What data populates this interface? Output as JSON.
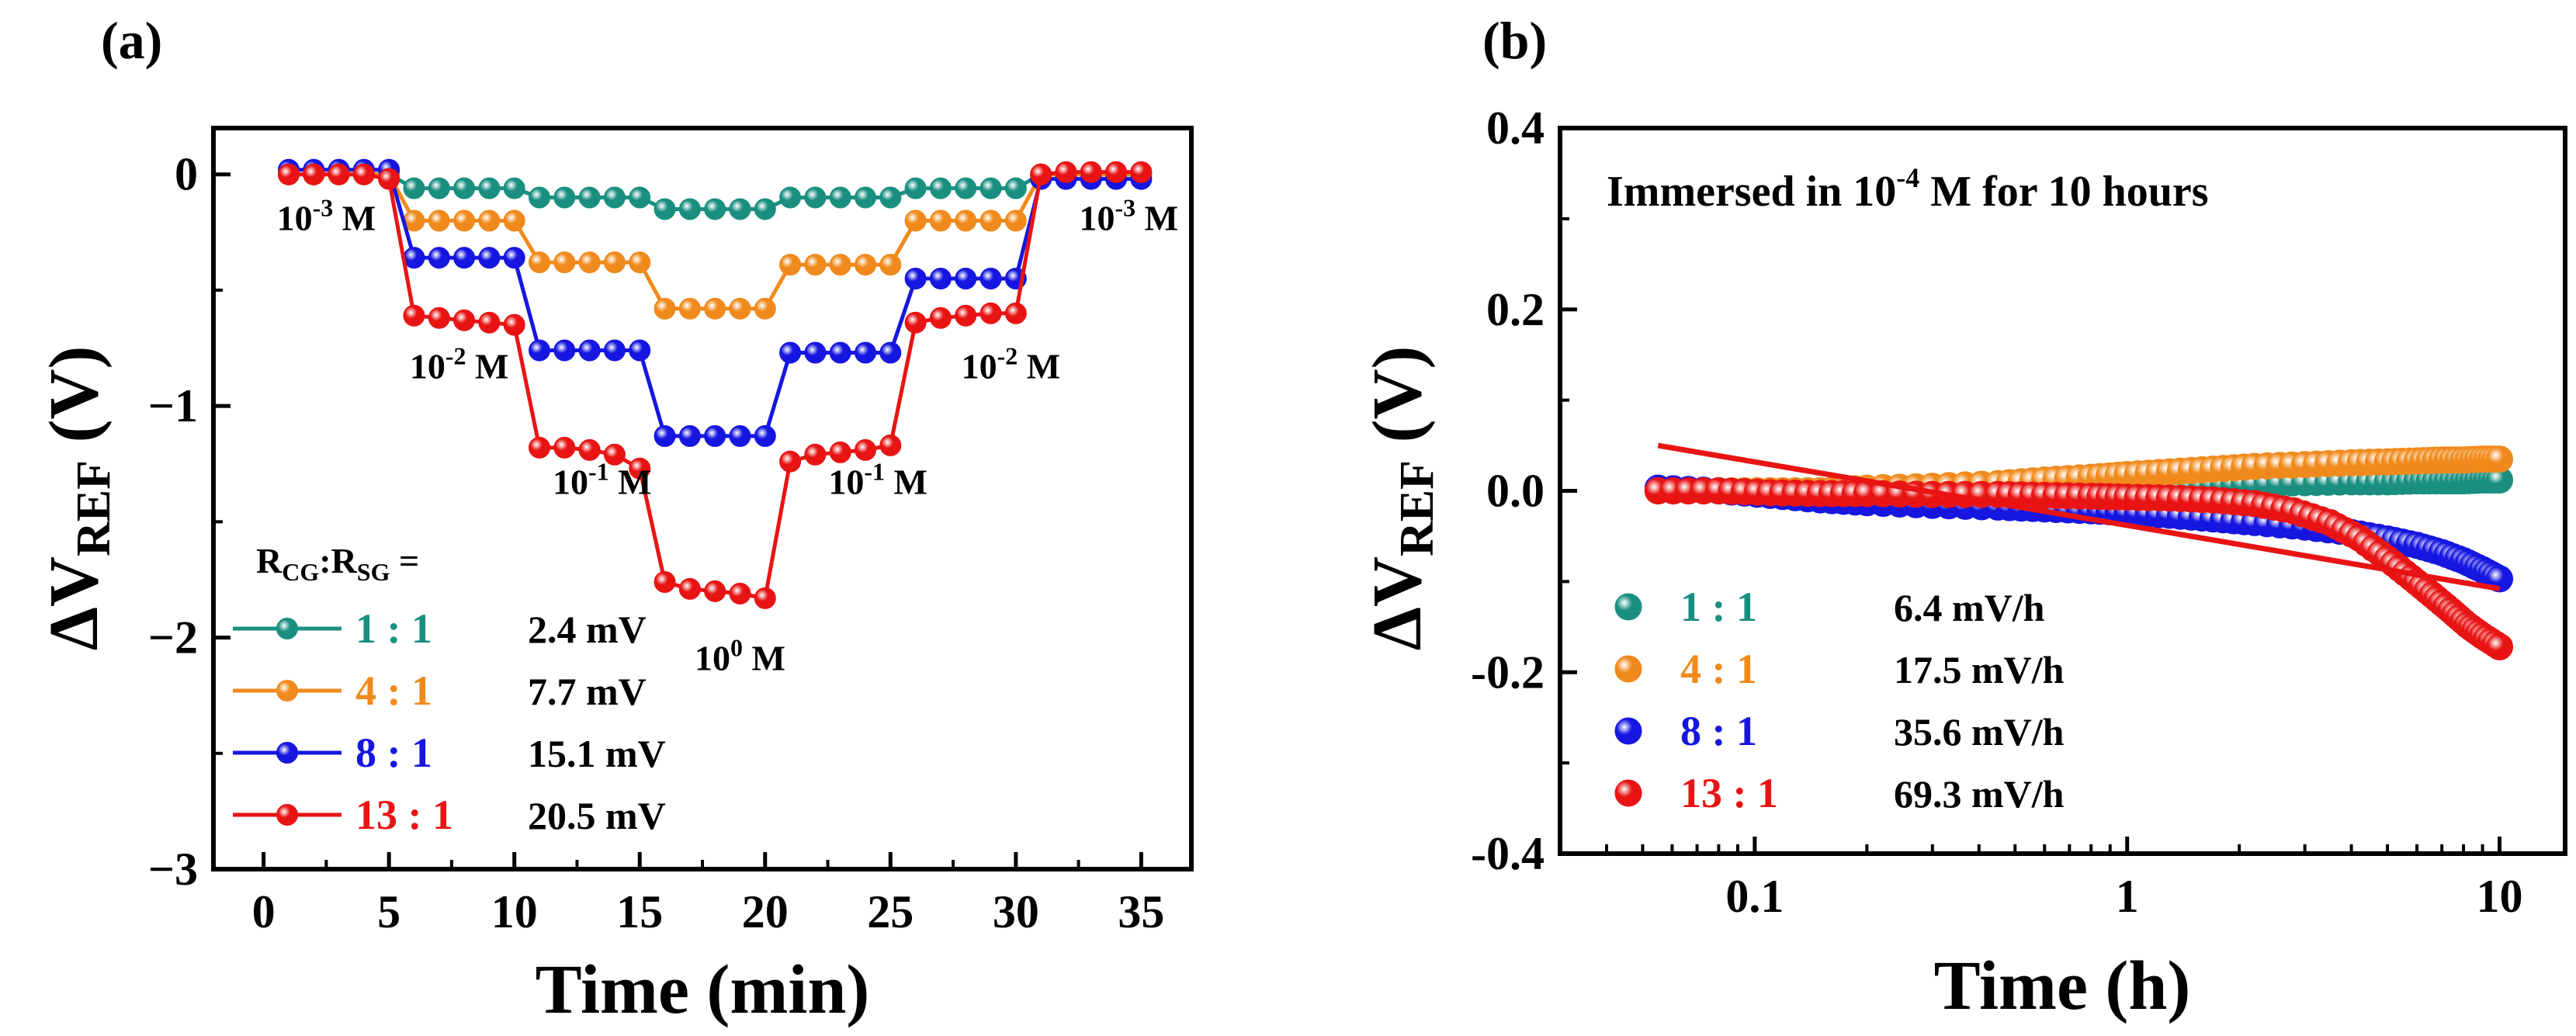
{
  "colors": {
    "teal": "#1a8f80",
    "orange": "#f08a1c",
    "blue": "#1616e0",
    "red": "#e81414",
    "axis": "#000000"
  },
  "chart_data": [
    {
      "panel": "(a)",
      "type": "line",
      "xlabel": "Time (min)",
      "ylabel": "ΔV",
      "ylabel_sub": "REF",
      "ylabel_unit": " (V)",
      "xlim": [
        -2,
        37
      ],
      "ylim": [
        -3,
        0.2
      ],
      "xticks": [
        "0",
        "5",
        "10",
        "15",
        "20",
        "25",
        "30",
        "35"
      ],
      "xtick_values": [
        0,
        5,
        10,
        15,
        20,
        25,
        30,
        35
      ],
      "yticks": [
        "0",
        "−1",
        "−2",
        "−3"
      ],
      "ytick_values": [
        0,
        -1,
        -2,
        -3
      ],
      "legend_title": "R",
      "legend_title_parts": [
        "R",
        "CG",
        ":R",
        "SG",
        " ="
      ],
      "legend_units": "mV",
      "concentration_labels": [
        {
          "base": "10",
          "exp": "-3",
          "unit": " M",
          "x": 2.5,
          "y": -0.24
        },
        {
          "base": "10",
          "exp": "-2",
          "unit": " M",
          "x": 7.8,
          "y": -0.88
        },
        {
          "base": "10",
          "exp": "-1",
          "unit": " M",
          "x": 13.5,
          "y": -1.38
        },
        {
          "base": "10",
          "exp": "0",
          "unit": " M",
          "x": 19.0,
          "y": -2.14
        },
        {
          "base": "10",
          "exp": "-1",
          "unit": " M",
          "x": 24.5,
          "y": -1.38
        },
        {
          "base": "10",
          "exp": "-2",
          "unit": " M",
          "x": 29.8,
          "y": -0.88
        },
        {
          "base": "10",
          "exp": "-3",
          "unit": " M",
          "x": 34.5,
          "y": -0.24
        }
      ],
      "x": [
        1,
        2,
        3,
        4,
        5,
        6,
        7,
        8,
        9,
        10,
        11,
        12,
        13,
        14,
        15,
        16,
        17,
        18,
        19,
        20,
        21,
        22,
        23,
        24,
        25,
        26,
        27,
        28,
        29,
        30,
        31,
        32,
        33,
        34,
        35
      ],
      "series": [
        {
          "name": "1 : 1",
          "value_label": "2.4 mV",
          "color": "teal",
          "values": [
            0,
            0,
            0,
            0,
            0,
            -0.06,
            -0.06,
            -0.06,
            -0.06,
            -0.06,
            -0.1,
            -0.1,
            -0.1,
            -0.1,
            -0.1,
            -0.15,
            -0.15,
            -0.15,
            -0.15,
            -0.15,
            -0.1,
            -0.1,
            -0.1,
            -0.1,
            -0.1,
            -0.06,
            -0.06,
            -0.06,
            -0.06,
            -0.06,
            0,
            0,
            0,
            0,
            0
          ]
        },
        {
          "name": "4 : 1",
          "value_label": "7.7 mV",
          "color": "orange",
          "values": [
            0,
            0,
            0,
            0,
            0,
            -0.2,
            -0.2,
            -0.2,
            -0.2,
            -0.2,
            -0.38,
            -0.38,
            -0.38,
            -0.38,
            -0.38,
            -0.58,
            -0.58,
            -0.58,
            -0.58,
            -0.58,
            -0.39,
            -0.39,
            -0.39,
            -0.39,
            -0.39,
            -0.2,
            -0.2,
            -0.2,
            -0.2,
            -0.2,
            0,
            0,
            0,
            0,
            0
          ]
        },
        {
          "name": "8 : 1",
          "value_label": "15.1 mV",
          "color": "blue",
          "values": [
            0.02,
            0.02,
            0.02,
            0.02,
            0.02,
            -0.36,
            -0.36,
            -0.36,
            -0.36,
            -0.36,
            -0.76,
            -0.76,
            -0.76,
            -0.76,
            -0.76,
            -1.13,
            -1.13,
            -1.13,
            -1.13,
            -1.13,
            -0.77,
            -0.77,
            -0.77,
            -0.77,
            -0.77,
            -0.45,
            -0.45,
            -0.45,
            -0.45,
            -0.45,
            -0.02,
            -0.02,
            -0.02,
            -0.02,
            -0.02
          ]
        },
        {
          "name": "13 : 1",
          "value_label": "20.5 mV",
          "color": "red",
          "values": [
            0,
            0,
            0,
            0,
            -0.02,
            -0.61,
            -0.62,
            -0.63,
            -0.64,
            -0.65,
            -1.18,
            -1.18,
            -1.19,
            -1.21,
            -1.27,
            -1.76,
            -1.79,
            -1.8,
            -1.81,
            -1.83,
            -1.24,
            -1.21,
            -1.2,
            -1.19,
            -1.17,
            -0.64,
            -0.62,
            -0.61,
            -0.6,
            -0.6,
            0,
            0.01,
            0.01,
            0.01,
            0.01
          ]
        }
      ]
    },
    {
      "panel": "(b)",
      "type": "scatter",
      "xscale": "log",
      "xlabel": "Time (h)",
      "ylabel": "ΔV",
      "ylabel_sub": "REF",
      "ylabel_unit": " (V)",
      "xlim": [
        0.03,
        15
      ],
      "ylim": [
        -0.4,
        0.4
      ],
      "xticks": [
        "0.1",
        "1",
        "10"
      ],
      "xtick_values": [
        0.1,
        1,
        10
      ],
      "yticks": [
        "0.4",
        "0.2",
        "0.0",
        "-0.2",
        "-0.4"
      ],
      "ytick_values": [
        0.4,
        0.2,
        0.0,
        -0.2,
        -0.4
      ],
      "annotation_parts": [
        "Immersed in 10",
        "-4",
        " M for 10 hours"
      ],
      "series": [
        {
          "name": "1 : 1",
          "rate": "6.4 mV/h",
          "color": "teal",
          "x": [
            0.055,
            0.08,
            0.11,
            0.15,
            0.2,
            0.3,
            0.45,
            0.6,
            0.8,
            1.0,
            1.3,
            1.7,
            2.2,
            3,
            4,
            5,
            6,
            7,
            8,
            9,
            10
          ],
          "y": [
            0,
            0,
            0,
            0,
            0,
            0,
            0,
            0.002,
            0.004,
            0.005,
            0.006,
            0.007,
            0.008,
            0.009,
            0.01,
            0.01,
            0.011,
            0.011,
            0.011,
            0.012,
            0.012
          ]
        },
        {
          "name": "4 : 1",
          "rate": "17.5 mV/h",
          "color": "orange",
          "x": [
            0.055,
            0.08,
            0.11,
            0.15,
            0.2,
            0.3,
            0.45,
            0.6,
            0.8,
            1.0,
            1.3,
            1.7,
            2.2,
            3,
            4,
            5,
            6,
            7,
            8,
            9,
            10
          ],
          "y": [
            0,
            0,
            0,
            0,
            0.003,
            0.005,
            0.008,
            0.012,
            0.015,
            0.018,
            0.021,
            0.024,
            0.027,
            0.029,
            0.031,
            0.032,
            0.033,
            0.034,
            0.034,
            0.035,
            0.035
          ]
        },
        {
          "name": "8 : 1",
          "rate": "35.6 mV/h",
          "color": "blue",
          "x": [
            0.055,
            0.08,
            0.11,
            0.15,
            0.2,
            0.3,
            0.45,
            0.6,
            0.8,
            1.0,
            1.3,
            1.7,
            2.2,
            3,
            4,
            5,
            6,
            7,
            8,
            9,
            10
          ],
          "y": [
            0.003,
            0,
            -0.005,
            -0.01,
            -0.013,
            -0.016,
            -0.018,
            -0.02,
            -0.022,
            -0.024,
            -0.027,
            -0.031,
            -0.035,
            -0.04,
            -0.046,
            -0.053,
            -0.06,
            -0.068,
            -0.077,
            -0.087,
            -0.097
          ]
        },
        {
          "name": "13 : 1",
          "rate": "69.3 mV/h",
          "color": "red",
          "x": [
            0.055,
            0.08,
            0.11,
            0.15,
            0.2,
            0.3,
            0.45,
            0.6,
            0.8,
            1.0,
            1.3,
            1.7,
            2.2,
            2.8,
            3.5,
            4.2,
            5,
            5.8,
            6.6,
            7.4,
            8.2,
            9,
            10
          ],
          "y": [
            0,
            0,
            -0.002,
            -0.003,
            -0.003,
            -0.004,
            -0.004,
            -0.005,
            -0.006,
            -0.007,
            -0.008,
            -0.01,
            -0.014,
            -0.022,
            -0.035,
            -0.052,
            -0.075,
            -0.096,
            -0.115,
            -0.132,
            -0.148,
            -0.16,
            -0.172
          ]
        }
      ],
      "fit_line": {
        "color": "red",
        "x": [
          0.055,
          10
        ],
        "y": [
          0.05,
          -0.108
        ]
      }
    }
  ]
}
